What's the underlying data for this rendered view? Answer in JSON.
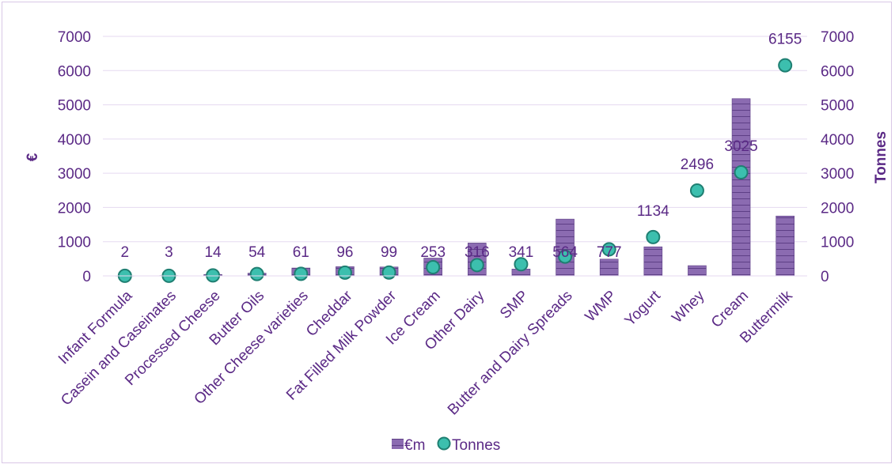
{
  "colors": {
    "bar_fill": "#8b6bb1",
    "bar_stripe": "#5e3f86",
    "marker_fill": "#3cbfae",
    "marker_stroke": "#1f7f72",
    "text": "#5b2a86",
    "grid": "#e5daf0"
  },
  "chart_data": {
    "type": "bar",
    "categories": [
      "Infant Formula",
      "Casein and Caseinates",
      "Processed Cheese",
      "Butter Oils",
      "Other Cheese varieties",
      "Cheddar",
      "Fat Filled Milk Powder",
      "Ice Cream",
      "Other Dairy",
      "SMP",
      "Butter and Dairy Spreads",
      "WMP",
      "Yogurt",
      "Whey",
      "Cream",
      "Buttermilk"
    ],
    "series": [
      {
        "name": "€m",
        "type": "bar",
        "axis": "left",
        "values": [
          5,
          8,
          40,
          80,
          230,
          270,
          260,
          520,
          960,
          200,
          1660,
          490,
          850,
          300,
          5180,
          1750
        ]
      },
      {
        "name": "Tonnes",
        "type": "scatter",
        "axis": "right",
        "values": [
          2,
          3,
          14,
          54,
          61,
          96,
          99,
          253,
          316,
          341,
          564,
          777,
          1134,
          2496,
          3025,
          6155
        ],
        "labels": [
          "2",
          "3",
          "14",
          "54",
          "61",
          "96",
          "99",
          "253",
          "316",
          "341",
          "564",
          "777",
          "1134",
          "2496",
          "3025",
          "6155"
        ]
      }
    ],
    "ylabel": "€",
    "y2label": "Tonnes",
    "ylim": [
      0,
      7000
    ],
    "y2lim": [
      0,
      7000
    ],
    "yticks": [
      "0",
      "1000",
      "2000",
      "3000",
      "4000",
      "5000",
      "6000",
      "7000"
    ],
    "y2ticks": [
      "0",
      "1000",
      "2000",
      "3000",
      "4000",
      "5000",
      "6000",
      "7000"
    ],
    "grid": true,
    "legend": {
      "position": "bottom",
      "entries": [
        "€m",
        "Tonnes"
      ]
    }
  }
}
